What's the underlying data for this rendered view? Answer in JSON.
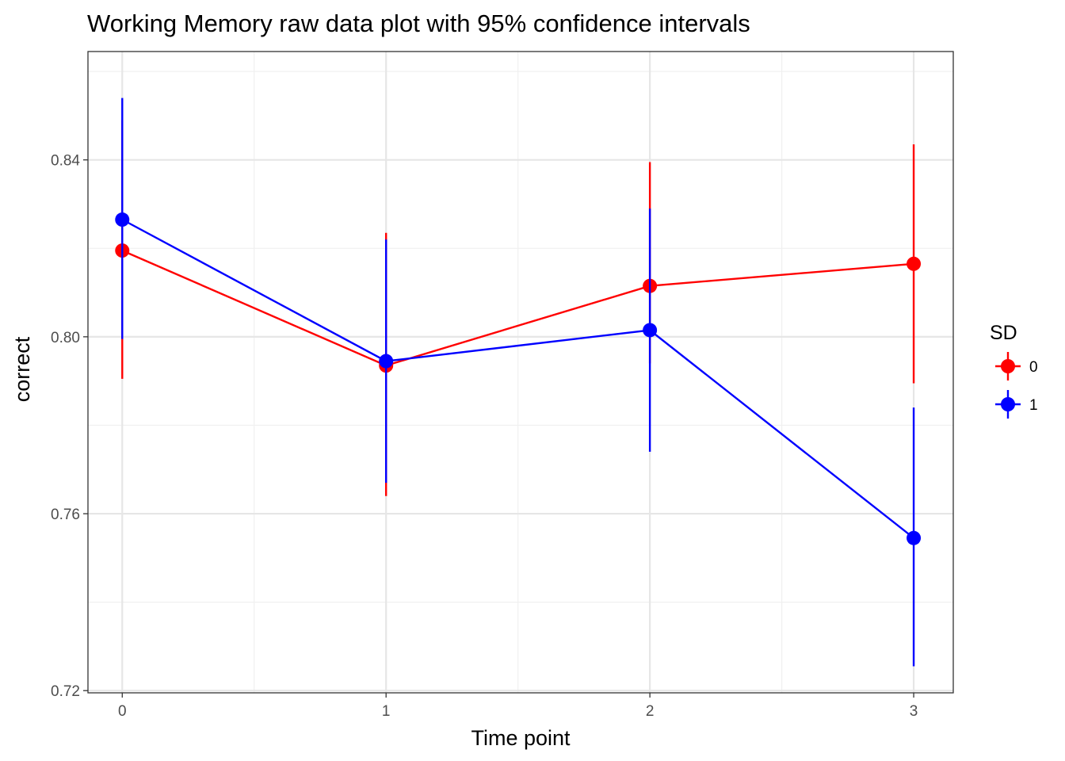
{
  "chart_data": {
    "type": "line",
    "title": "Working Memory raw data plot with 95% confidence intervals",
    "xlabel": "Time point",
    "ylabel": "correct",
    "x": [
      0,
      1,
      2,
      3
    ],
    "x_ticks": [
      "0",
      "1",
      "2",
      "3"
    ],
    "y_ticks": [
      "0.72",
      "0.76",
      "0.80",
      "0.84"
    ],
    "y_tick_values": [
      0.72,
      0.76,
      0.8,
      0.84
    ],
    "xlim": [
      -0.13,
      3.15
    ],
    "ylim": [
      0.7195,
      0.8645
    ],
    "grid": true,
    "error_bars": "95% confidence interval",
    "legend": {
      "title": "SD",
      "position": "right"
    },
    "series": [
      {
        "name": "0",
        "color": "#ff0000",
        "values": [
          0.8195,
          0.7935,
          0.8115,
          0.8165
        ],
        "ci_low": [
          0.7905,
          0.764,
          0.794,
          0.7895
        ],
        "ci_high": [
          0.849,
          0.8235,
          0.8395,
          0.8435
        ]
      },
      {
        "name": "1",
        "color": "#0000ff",
        "values": [
          0.8265,
          0.7945,
          0.8015,
          0.7545
        ],
        "ci_low": [
          0.7995,
          0.767,
          0.774,
          0.7255
        ],
        "ci_high": [
          0.854,
          0.822,
          0.829,
          0.784
        ]
      }
    ]
  }
}
